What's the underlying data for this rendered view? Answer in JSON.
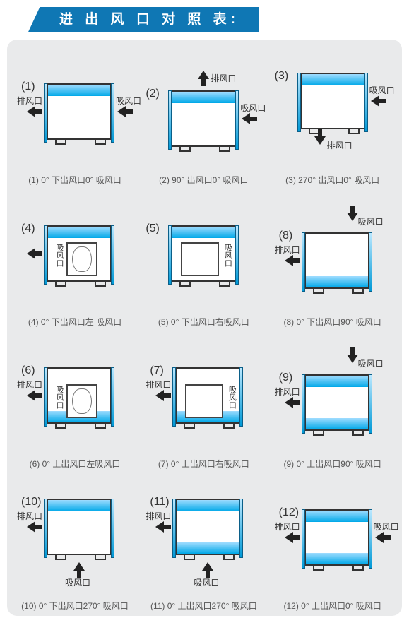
{
  "title": "进 出 风 口 对 照 表:",
  "colors": {
    "banner": "#0f77b4",
    "panel_bg": "#e9eaeb",
    "gradient_top": "#9fdcff",
    "gradient_bottom": "#00a8e8",
    "arrow": "#222222",
    "text": "#333333"
  },
  "cells": [
    {
      "num": "(1)",
      "caption": "(1) 0°  下出风口0°  吸风口",
      "left_out": {
        "label": "排风口"
      },
      "right_in": {
        "label": "吸风口"
      },
      "band": "top"
    },
    {
      "num": "(2)",
      "caption": "(2) 90°  出风口0°  吸风口",
      "top_out": {
        "label": "排风口"
      },
      "right_in": {
        "label": "吸风口"
      },
      "band": "top"
    },
    {
      "num": "(3)",
      "caption": "(3) 270°  出风口0° 吸风口",
      "right_in": {
        "label": "吸风口"
      },
      "bottom_out": {
        "label": "排风口"
      },
      "band": "top"
    },
    {
      "num": "(4)",
      "caption": "(4) 0°  下出风口左 吸风口",
      "left_out": {
        "label": ""
      },
      "panel": "left",
      "panel_label": "吸风口",
      "band": "top"
    },
    {
      "num": "(5)",
      "caption": "(5) 0°  下出风口右吸风口",
      "panel": "right",
      "panel_label": "吸风口",
      "band": "top"
    },
    {
      "num": "(8)",
      "caption": "(8) 0°  下出风口90°  吸风口",
      "left_out": {
        "label": "排风口"
      },
      "top_in": {
        "label": "吸风口"
      },
      "band": "bottom"
    },
    {
      "num": "(6)",
      "caption": "(6) 0°  上出风口左吸风口",
      "left_out": {
        "label": "排风口"
      },
      "panel": "left",
      "panel_label": "吸风口",
      "band": "bottom"
    },
    {
      "num": "(7)",
      "caption": "(7) 0°  上出风口右吸风口",
      "left_out": {
        "label": "排风口"
      },
      "panel": "right",
      "panel_label": "吸风口",
      "band": "bottom"
    },
    {
      "num": "(9)",
      "caption": "(9) 0°  上出风口90° 吸风口",
      "left_out": {
        "label": "排风口"
      },
      "top_in": {
        "label": "吸风口"
      },
      "band": "top",
      "band2": "bottom"
    },
    {
      "num": "(10)",
      "caption": "(10) 0°  下出风口270°  吸风口",
      "left_out": {
        "label": "排风口"
      },
      "bottom_in": {
        "label": "吸风口"
      },
      "band": "top"
    },
    {
      "num": "(11)",
      "caption": "(11) 0°  上出风口270° 吸风口",
      "left_out": {
        "label": "排风口"
      },
      "bottom_in": {
        "label": "吸风口"
      },
      "band": "top",
      "band2": "bottom"
    },
    {
      "num": "(12)",
      "caption": "(12) 0°  上出风口0°  吸风口",
      "left_out": {
        "label": "排风口"
      },
      "right_in": {
        "label": "吸风口"
      },
      "band": "top",
      "band2": "bottom"
    }
  ],
  "unit": {
    "w": 92,
    "h": 80,
    "band_h": 16,
    "side_w": 5,
    "foot_inset": 10
  }
}
